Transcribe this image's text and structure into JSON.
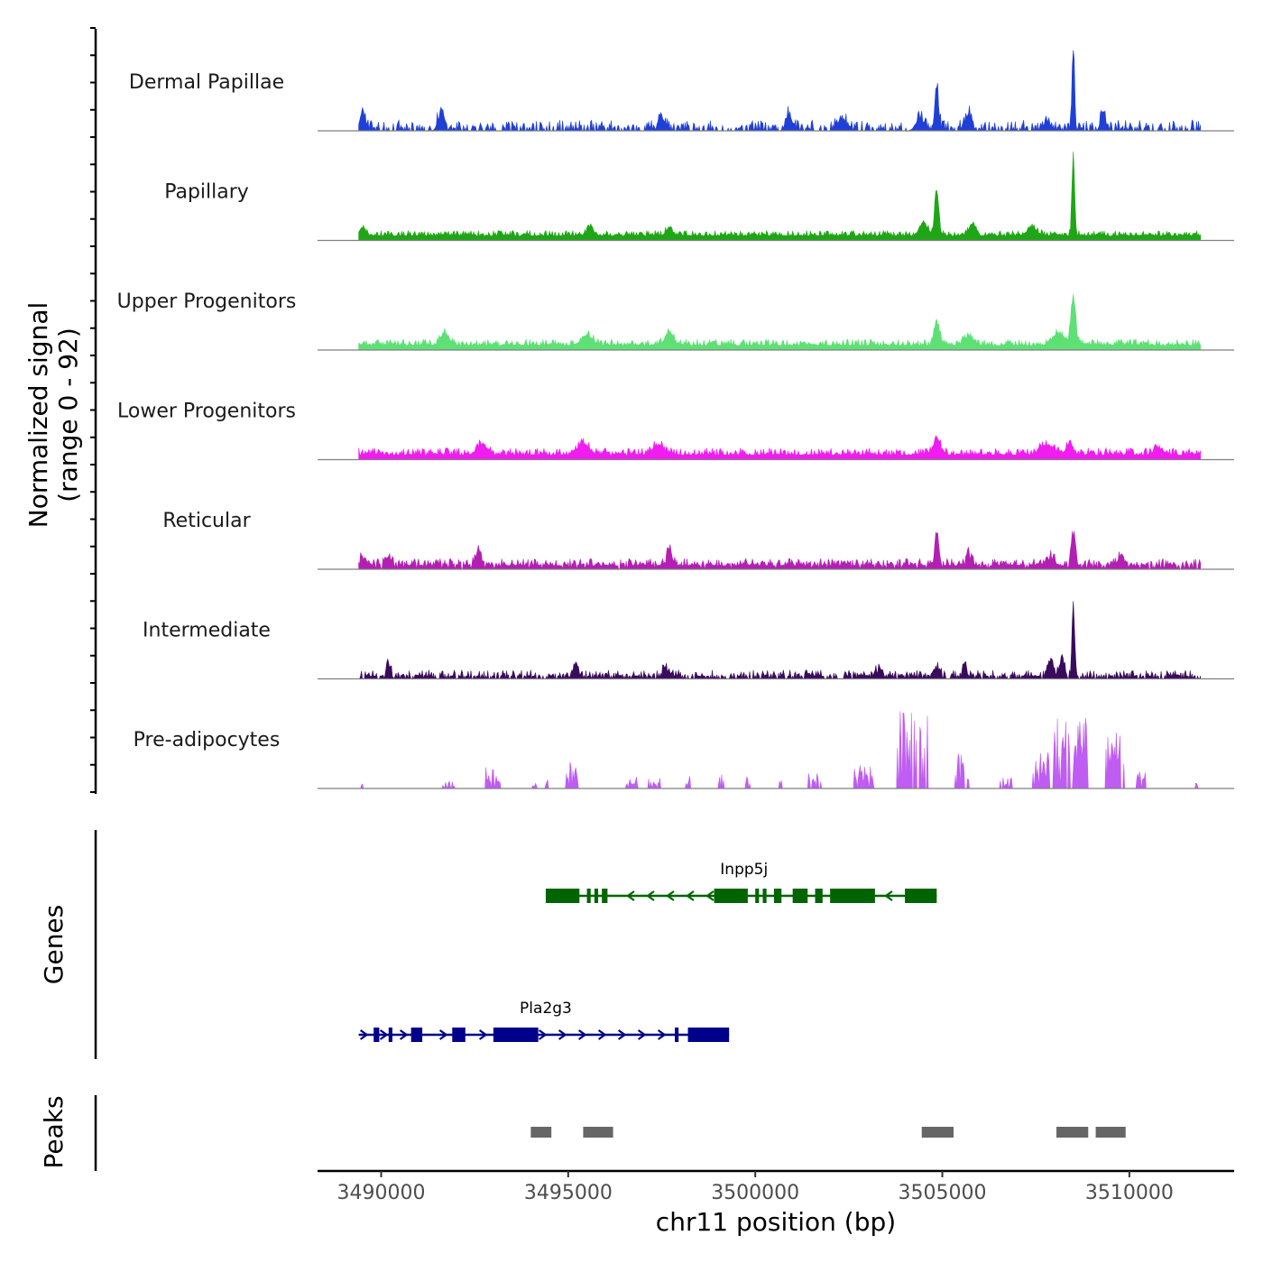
{
  "chart_data": {
    "type": "area",
    "figure": "coverage-plot",
    "ylabel_line1": "Normalized signal",
    "ylabel_line2": "(range 0 - 92)",
    "signal_range": [
      0,
      92
    ],
    "xlabel": "chr11 position (bp)",
    "xlim": [
      3488300,
      3512800
    ],
    "data_extent": [
      3489400,
      3511900
    ],
    "xticks": [
      3490000,
      3495000,
      3500000,
      3505000,
      3510000
    ],
    "xtick_labels": [
      "3490000",
      "3495000",
      "3500000",
      "3505000",
      "3510000"
    ],
    "tracks": [
      {
        "name": "Dermal Papillae",
        "color": "#1f3fd6",
        "baseline": 3,
        "noise": 9,
        "sparse": 0.45,
        "seed": 11,
        "peaks": [
          {
            "x": 3489500,
            "h": 24,
            "w": 120
          },
          {
            "x": 3491600,
            "h": 20,
            "w": 150
          },
          {
            "x": 3497500,
            "h": 16,
            "w": 150
          },
          {
            "x": 3500900,
            "h": 18,
            "w": 150
          },
          {
            "x": 3502300,
            "h": 14,
            "w": 200
          },
          {
            "x": 3504400,
            "h": 14,
            "w": 200
          },
          {
            "x": 3504850,
            "h": 50,
            "w": 90
          },
          {
            "x": 3505700,
            "h": 20,
            "w": 150
          },
          {
            "x": 3507800,
            "h": 12,
            "w": 150
          },
          {
            "x": 3508500,
            "h": 97,
            "w": 60
          },
          {
            "x": 3509300,
            "h": 20,
            "w": 120
          }
        ]
      },
      {
        "name": "Papillary",
        "color": "#1fa616",
        "baseline": 5,
        "noise": 6,
        "sparse": 0,
        "seed": 23,
        "peaks": [
          {
            "x": 3489500,
            "h": 8,
            "w": 150
          },
          {
            "x": 3495600,
            "h": 10,
            "w": 150
          },
          {
            "x": 3497700,
            "h": 9,
            "w": 150
          },
          {
            "x": 3504500,
            "h": 14,
            "w": 200
          },
          {
            "x": 3504850,
            "h": 58,
            "w": 90
          },
          {
            "x": 3505800,
            "h": 14,
            "w": 150
          },
          {
            "x": 3507400,
            "h": 10,
            "w": 200
          },
          {
            "x": 3508500,
            "h": 100,
            "w": 60
          }
        ]
      },
      {
        "name": "Upper Progenitors",
        "color": "#5ee075",
        "baseline": 5,
        "noise": 7,
        "sparse": 0,
        "seed": 37,
        "peaks": [
          {
            "x": 3491700,
            "h": 14,
            "w": 200
          },
          {
            "x": 3495500,
            "h": 12,
            "w": 250
          },
          {
            "x": 3497700,
            "h": 16,
            "w": 200
          },
          {
            "x": 3504850,
            "h": 28,
            "w": 120
          },
          {
            "x": 3505700,
            "h": 10,
            "w": 200
          },
          {
            "x": 3508100,
            "h": 14,
            "w": 250
          },
          {
            "x": 3508500,
            "h": 58,
            "w": 110
          }
        ]
      },
      {
        "name": "Lower Progenitors",
        "color": "#f01cf0",
        "baseline": 5,
        "noise": 8,
        "sparse": 0,
        "seed": 41,
        "peaks": [
          {
            "x": 3492700,
            "h": 12,
            "w": 250
          },
          {
            "x": 3495400,
            "h": 12,
            "w": 300
          },
          {
            "x": 3497400,
            "h": 12,
            "w": 250
          },
          {
            "x": 3504850,
            "h": 20,
            "w": 150
          },
          {
            "x": 3507800,
            "h": 12,
            "w": 300
          },
          {
            "x": 3508400,
            "h": 14,
            "w": 150
          },
          {
            "x": 3510800,
            "h": 8,
            "w": 200
          }
        ]
      },
      {
        "name": "Reticular",
        "color": "#b31fb3",
        "baseline": 4,
        "noise": 8,
        "sparse": 0.1,
        "seed": 53,
        "peaks": [
          {
            "x": 3489500,
            "h": 12,
            "w": 120
          },
          {
            "x": 3490200,
            "h": 10,
            "w": 150
          },
          {
            "x": 3492600,
            "h": 18,
            "w": 120
          },
          {
            "x": 3497700,
            "h": 20,
            "w": 120
          },
          {
            "x": 3504850,
            "h": 36,
            "w": 100
          },
          {
            "x": 3505700,
            "h": 14,
            "w": 120
          },
          {
            "x": 3507900,
            "h": 12,
            "w": 150
          },
          {
            "x": 3508500,
            "h": 42,
            "w": 100
          },
          {
            "x": 3509800,
            "h": 12,
            "w": 150
          }
        ]
      },
      {
        "name": "Intermediate",
        "color": "#3a0a5c",
        "baseline": 3,
        "noise": 7,
        "sparse": 0.3,
        "seed": 67,
        "peaks": [
          {
            "x": 3490200,
            "h": 16,
            "w": 100
          },
          {
            "x": 3495200,
            "h": 14,
            "w": 150
          },
          {
            "x": 3497600,
            "h": 10,
            "w": 150
          },
          {
            "x": 3503300,
            "h": 8,
            "w": 200
          },
          {
            "x": 3504850,
            "h": 12,
            "w": 150
          },
          {
            "x": 3505600,
            "h": 12,
            "w": 120
          },
          {
            "x": 3507900,
            "h": 20,
            "w": 150
          },
          {
            "x": 3508200,
            "h": 26,
            "w": 100
          },
          {
            "x": 3508500,
            "h": 88,
            "w": 60
          }
        ]
      },
      {
        "name": "Pre-adipocytes",
        "color": "#bf5cf2",
        "baseline": 0,
        "noise": 0,
        "sparse": 0,
        "seed": 79,
        "spiky": true,
        "clusters": [
          {
            "x": 3489500,
            "w": 40,
            "h": 8
          },
          {
            "x": 3491800,
            "w": 300,
            "h": 8
          },
          {
            "x": 3493000,
            "w": 400,
            "h": 26
          },
          {
            "x": 3494100,
            "w": 100,
            "h": 8
          },
          {
            "x": 3494400,
            "w": 120,
            "h": 14
          },
          {
            "x": 3495100,
            "w": 300,
            "h": 30
          },
          {
            "x": 3496700,
            "w": 300,
            "h": 14
          },
          {
            "x": 3497300,
            "w": 300,
            "h": 12
          },
          {
            "x": 3498200,
            "w": 100,
            "h": 14
          },
          {
            "x": 3499100,
            "w": 150,
            "h": 18
          },
          {
            "x": 3499800,
            "w": 100,
            "h": 14
          },
          {
            "x": 3500700,
            "w": 100,
            "h": 14
          },
          {
            "x": 3501600,
            "w": 400,
            "h": 18
          },
          {
            "x": 3502900,
            "w": 500,
            "h": 28
          },
          {
            "x": 3504200,
            "w": 800,
            "h": 90
          },
          {
            "x": 3505500,
            "w": 400,
            "h": 40
          },
          {
            "x": 3506700,
            "w": 300,
            "h": 12
          },
          {
            "x": 3507600,
            "w": 400,
            "h": 42
          },
          {
            "x": 3508100,
            "w": 600,
            "h": 95
          },
          {
            "x": 3508700,
            "w": 400,
            "h": 80
          },
          {
            "x": 3509600,
            "w": 500,
            "h": 70
          },
          {
            "x": 3510300,
            "w": 300,
            "h": 22
          },
          {
            "x": 3511800,
            "w": 40,
            "h": 8
          }
        ]
      }
    ],
    "genes_label": "Genes",
    "genes": [
      {
        "name": "Inpp5j",
        "strand": "-",
        "color": "#006400",
        "start": 3494400,
        "end": 3504850,
        "exons": [
          [
            3494400,
            3495300
          ],
          [
            3495500,
            3495600
          ],
          [
            3495700,
            3495800
          ],
          [
            3495900,
            3496050
          ],
          [
            3498900,
            3499800
          ],
          [
            3500000,
            3500100
          ],
          [
            3500200,
            3500300
          ],
          [
            3500500,
            3500700
          ],
          [
            3501000,
            3501400
          ],
          [
            3501600,
            3501800
          ],
          [
            3502000,
            3503200
          ],
          [
            3504000,
            3504850
          ]
        ]
      },
      {
        "name": "Pla2g3",
        "strand": "+",
        "color": "#00008b",
        "start": 3489400,
        "end": 3499300,
        "exons": [
          [
            3489800,
            3489950
          ],
          [
            3490200,
            3490300
          ],
          [
            3490800,
            3491100
          ],
          [
            3491900,
            3492250
          ],
          [
            3493000,
            3494200
          ],
          [
            3497850,
            3497950
          ],
          [
            3498200,
            3499300
          ]
        ]
      }
    ],
    "peaks_label": "Peaks",
    "peak_regions": [
      [
        3494000,
        3494550
      ],
      [
        3495400,
        3496200
      ],
      [
        3504450,
        3505300
      ],
      [
        3508050,
        3508900
      ],
      [
        3509100,
        3509900
      ]
    ]
  }
}
